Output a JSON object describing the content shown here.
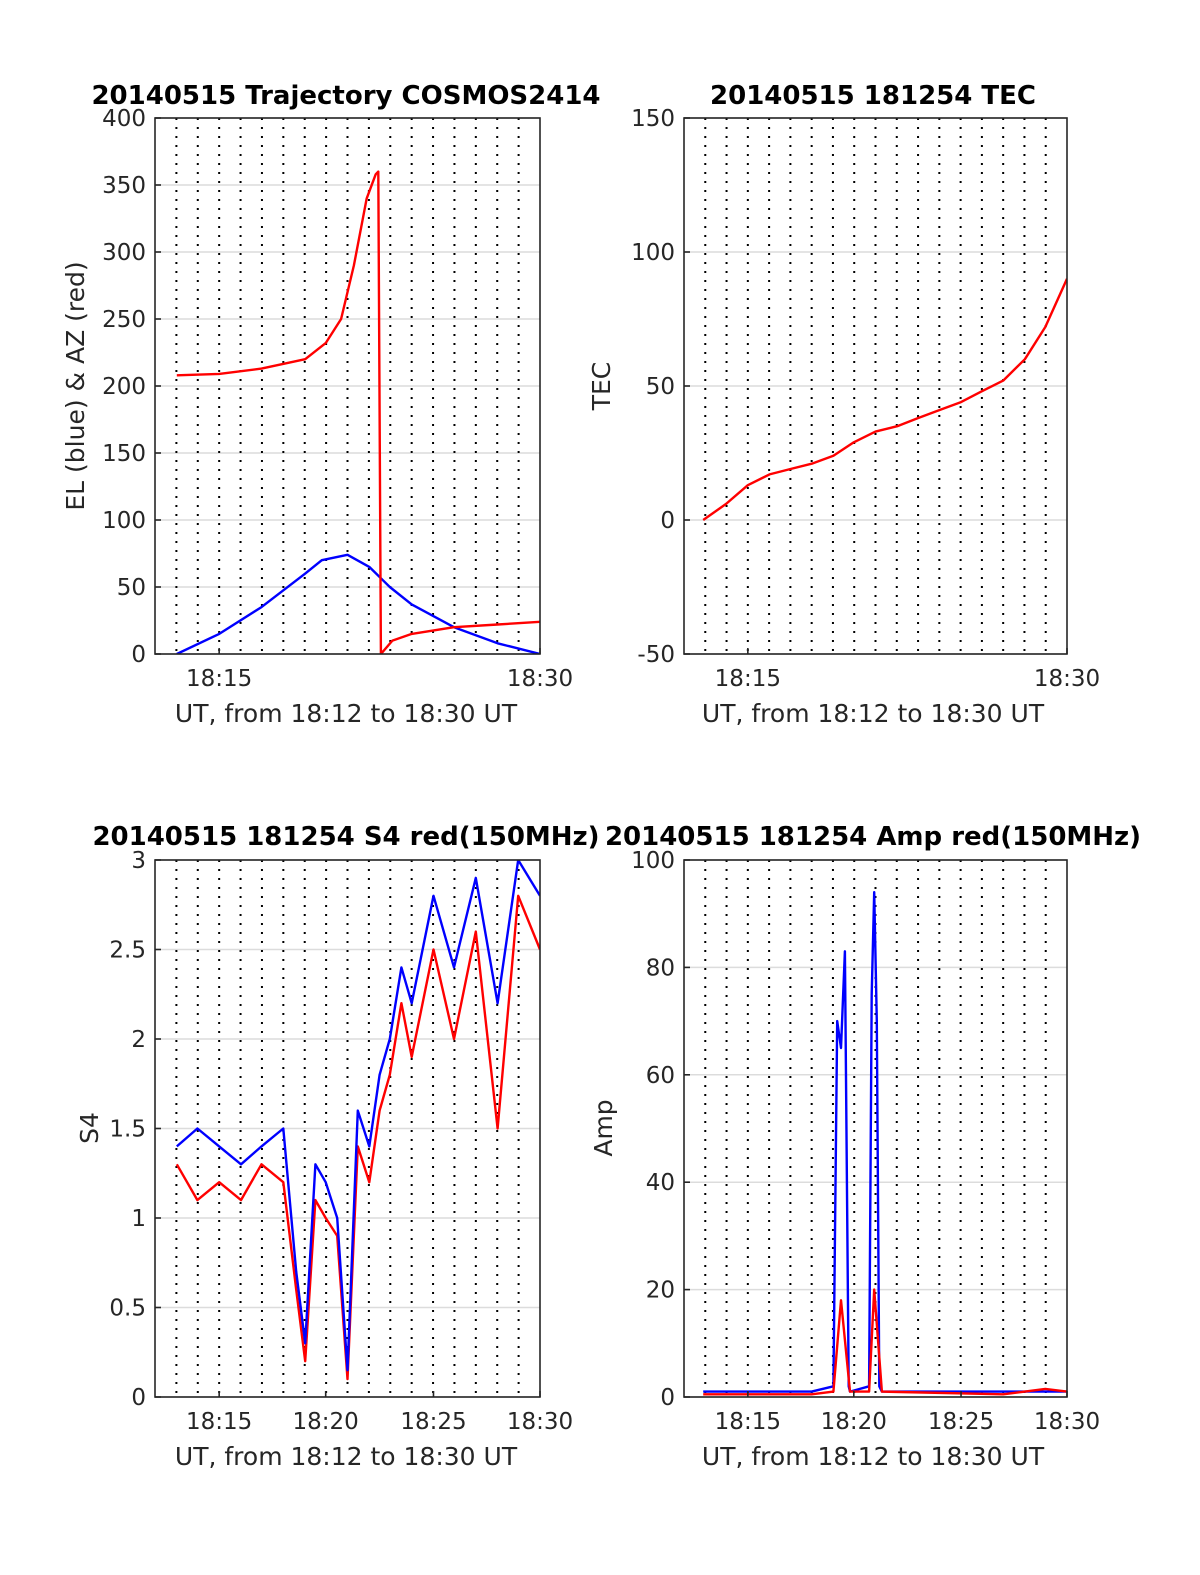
{
  "chart_data": [
    {
      "type": "line",
      "title": "20140515 Trajectory COSMOS2414",
      "xlabel": "UT, from 18:12 to 18:30 UT",
      "ylabel": "EL (blue) & AZ (red)",
      "xlim": [
        18.2,
        18.5
      ],
      "ylim": [
        0,
        400
      ],
      "xticks": [
        {
          "value": 18.25,
          "label": "18:15"
        },
        {
          "value": 18.5,
          "label": "18:30"
        }
      ],
      "yticks": [
        0,
        50,
        100,
        150,
        200,
        250,
        300,
        350,
        400
      ],
      "grid": true,
      "series": [
        {
          "color": "#0000ff",
          "x": [
            18.217,
            18.25,
            18.283,
            18.317,
            18.33,
            18.35,
            18.367,
            18.383,
            18.4,
            18.433,
            18.467,
            18.5
          ],
          "y": [
            0,
            15,
            35,
            60,
            70,
            74,
            65,
            50,
            37,
            20,
            8,
            0
          ]
        },
        {
          "color": "#ff0000",
          "x": [
            18.217,
            18.25,
            18.283,
            18.317,
            18.333,
            18.345,
            18.355,
            18.365,
            18.372,
            18.374,
            18.376,
            18.385,
            18.4,
            18.433,
            18.467,
            18.5
          ],
          "y": [
            208,
            209,
            213,
            220,
            232,
            250,
            290,
            340,
            358,
            360,
            0,
            10,
            15,
            20,
            22,
            24
          ]
        }
      ]
    },
    {
      "type": "line",
      "title": "20140515 181254 TEC",
      "xlabel": "UT, from 18:12 to 18:30 UT",
      "ylabel": "TEC",
      "xlim": [
        18.2,
        18.5
      ],
      "ylim": [
        -50,
        150
      ],
      "xticks": [
        {
          "value": 18.25,
          "label": "18:15"
        },
        {
          "value": 18.5,
          "label": "18:30"
        }
      ],
      "yticks": [
        -50,
        0,
        50,
        100,
        150
      ],
      "grid": true,
      "series": [
        {
          "color": "#ff0000",
          "x": [
            18.215,
            18.233,
            18.25,
            18.267,
            18.283,
            18.3,
            18.317,
            18.333,
            18.35,
            18.367,
            18.383,
            18.4,
            18.417,
            18.433,
            18.45,
            18.467,
            18.483,
            18.5
          ],
          "y": [
            0,
            6,
            13,
            17,
            19,
            21,
            24,
            29,
            33,
            35,
            38,
            41,
            44,
            48,
            52,
            60,
            72,
            90
          ]
        }
      ]
    },
    {
      "type": "line",
      "title": "20140515 181254 S4 red(150MHz)",
      "xlabel": "UT, from 18:12 to 18:30 UT",
      "ylabel": "S4",
      "xlim": [
        18.2,
        18.5
      ],
      "ylim": [
        0,
        3
      ],
      "xticks": [
        {
          "value": 18.25,
          "label": "18:15"
        },
        {
          "value": 18.333,
          "label": "18:20"
        },
        {
          "value": 18.417,
          "label": "18:25"
        },
        {
          "value": 18.5,
          "label": "18:30"
        }
      ],
      "yticks": [
        0,
        0.5,
        1,
        1.5,
        2,
        2.5,
        3
      ],
      "grid": true,
      "series": [
        {
          "color": "#ff0000",
          "x": [
            18.217,
            18.233,
            18.25,
            18.267,
            18.283,
            18.3,
            18.31,
            18.317,
            18.325,
            18.333,
            18.342,
            18.35,
            18.358,
            18.367,
            18.375,
            18.383,
            18.392,
            18.4,
            18.417,
            18.433,
            18.45,
            18.467,
            18.483,
            18.5
          ],
          "y": [
            1.3,
            1.1,
            1.2,
            1.1,
            1.3,
            1.2,
            0.6,
            0.2,
            1.1,
            1.0,
            0.9,
            0.1,
            1.4,
            1.2,
            1.6,
            1.8,
            2.2,
            1.9,
            2.5,
            2.0,
            2.6,
            1.5,
            2.8,
            2.5
          ]
        },
        {
          "color": "#0000ff",
          "x": [
            18.217,
            18.233,
            18.25,
            18.267,
            18.283,
            18.3,
            18.31,
            18.317,
            18.325,
            18.333,
            18.342,
            18.35,
            18.358,
            18.367,
            18.375,
            18.383,
            18.392,
            18.4,
            18.417,
            18.433,
            18.45,
            18.467,
            18.483,
            18.5
          ],
          "y": [
            1.4,
            1.5,
            1.4,
            1.3,
            1.4,
            1.5,
            0.7,
            0.3,
            1.3,
            1.2,
            1.0,
            0.15,
            1.6,
            1.4,
            1.8,
            2.0,
            2.4,
            2.2,
            2.8,
            2.4,
            2.9,
            2.2,
            3.0,
            2.8
          ]
        }
      ]
    },
    {
      "type": "line",
      "title": "20140515 181254 Amp red(150MHz)",
      "xlabel": "UT, from 18:12 to 18:30 UT",
      "ylabel": "Amp",
      "xlim": [
        18.2,
        18.5
      ],
      "ylim": [
        0,
        100
      ],
      "xticks": [
        {
          "value": 18.25,
          "label": "18:15"
        },
        {
          "value": 18.333,
          "label": "18:20"
        },
        {
          "value": 18.417,
          "label": "18:25"
        },
        {
          "value": 18.5,
          "label": "18:30"
        }
      ],
      "yticks": [
        0,
        20,
        40,
        60,
        80,
        100
      ],
      "grid": true,
      "series": [
        {
          "color": "#0000ff",
          "x": [
            18.215,
            18.3,
            18.3,
            18.317,
            18.32,
            18.323,
            18.326,
            18.329,
            18.33,
            18.345,
            18.347,
            18.349,
            18.351,
            18.353,
            18.355,
            18.4,
            18.45,
            18.5
          ],
          "y": [
            1,
            1,
            1,
            2,
            70,
            65,
            83,
            2,
            1,
            2,
            75,
            94,
            70,
            2,
            1,
            1,
            1,
            1
          ]
        },
        {
          "color": "#ff0000",
          "x": [
            18.215,
            18.3,
            18.317,
            18.323,
            18.33,
            18.345,
            18.349,
            18.355,
            18.45,
            18.467,
            18.483,
            18.5
          ],
          "y": [
            0.5,
            0.5,
            1,
            18,
            1,
            1,
            20,
            1,
            0.5,
            1,
            1.5,
            1
          ]
        }
      ]
    }
  ]
}
